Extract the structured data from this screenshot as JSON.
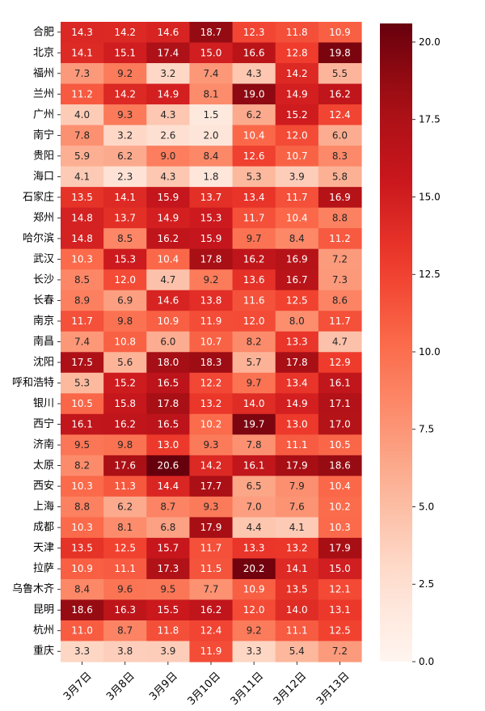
{
  "chart_data": {
    "type": "heatmap",
    "colormap": "Reds",
    "color_range": [
      0,
      20.6
    ],
    "colorbar_ticks": [
      "0.0",
      "2.5",
      "5.0",
      "7.5",
      "10.0",
      "12.5",
      "15.0",
      "17.5",
      "20.0"
    ],
    "colorbar_tick_values": [
      0,
      2.5,
      5,
      7.5,
      10,
      12.5,
      15,
      17.5,
      20
    ],
    "x_categories": [
      "3月7日",
      "3月8日",
      "3月9日",
      "3月10日",
      "3月11日",
      "3月12日",
      "3月13日"
    ],
    "y_categories": [
      "合肥",
      "北京",
      "福州",
      "兰州",
      "广州",
      "南宁",
      "贵阳",
      "海口",
      "石家庄",
      "郑州",
      "哈尔滨",
      "武汉",
      "长沙",
      "长春",
      "南京",
      "南昌",
      "沈阳",
      "呼和浩特",
      "银川",
      "西宁",
      "济南",
      "太原",
      "西安",
      "上海",
      "成都",
      "天津",
      "拉萨",
      "乌鲁木齐",
      "昆明",
      "杭州",
      "重庆"
    ],
    "values": [
      [
        14.3,
        14.2,
        14.6,
        18.7,
        12.3,
        11.8,
        10.9
      ],
      [
        14.1,
        15.1,
        17.4,
        15.0,
        16.6,
        12.8,
        19.8
      ],
      [
        7.3,
        9.2,
        3.2,
        7.4,
        4.3,
        14.2,
        5.5
      ],
      [
        11.2,
        14.2,
        14.9,
        8.1,
        19.0,
        14.9,
        16.2
      ],
      [
        4.0,
        9.3,
        4.3,
        1.5,
        6.2,
        15.2,
        12.4
      ],
      [
        7.8,
        3.2,
        2.6,
        2.0,
        10.4,
        12.0,
        6.0
      ],
      [
        5.9,
        6.2,
        9.0,
        8.4,
        12.6,
        10.7,
        8.3
      ],
      [
        4.1,
        2.3,
        4.3,
        1.8,
        5.3,
        3.9,
        5.8
      ],
      [
        13.5,
        14.1,
        15.9,
        13.7,
        13.4,
        11.7,
        16.9
      ],
      [
        14.8,
        13.7,
        14.9,
        15.3,
        11.7,
        10.4,
        8.8
      ],
      [
        14.8,
        8.5,
        16.2,
        15.9,
        9.7,
        8.4,
        11.2
      ],
      [
        10.3,
        15.3,
        10.4,
        17.8,
        16.2,
        16.9,
        7.2
      ],
      [
        8.5,
        12.0,
        4.7,
        9.2,
        13.6,
        16.7,
        7.3
      ],
      [
        8.9,
        6.9,
        14.6,
        13.8,
        11.6,
        12.5,
        8.6
      ],
      [
        11.7,
        9.8,
        10.9,
        11.9,
        12.0,
        8.0,
        11.7
      ],
      [
        7.4,
        10.8,
        6.0,
        10.7,
        8.2,
        13.3,
        4.7
      ],
      [
        17.5,
        5.6,
        18.0,
        18.3,
        5.7,
        17.8,
        12.9
      ],
      [
        5.3,
        15.2,
        16.5,
        12.2,
        9.7,
        13.4,
        16.1
      ],
      [
        10.5,
        15.8,
        17.8,
        13.2,
        14.0,
        14.9,
        17.1
      ],
      [
        16.1,
        16.2,
        16.5,
        10.2,
        19.7,
        13.0,
        17.0
      ],
      [
        9.5,
        9.8,
        13.0,
        9.3,
        7.8,
        11.1,
        10.5
      ],
      [
        8.2,
        17.6,
        20.6,
        14.2,
        16.1,
        17.9,
        18.6
      ],
      [
        10.3,
        11.3,
        14.4,
        17.7,
        6.5,
        7.9,
        10.4
      ],
      [
        8.8,
        6.2,
        8.7,
        9.3,
        7.0,
        7.6,
        10.2
      ],
      [
        10.3,
        8.1,
        6.8,
        17.9,
        4.4,
        4.1,
        10.3
      ],
      [
        13.5,
        12.5,
        15.7,
        11.7,
        13.3,
        13.2,
        17.9
      ],
      [
        10.9,
        11.1,
        17.3,
        11.5,
        20.2,
        14.1,
        15.0
      ],
      [
        8.4,
        9.6,
        9.5,
        7.7,
        10.9,
        13.5,
        12.1
      ],
      [
        18.6,
        16.3,
        15.5,
        16.2,
        12.0,
        14.0,
        13.1
      ],
      [
        11.0,
        8.7,
        11.8,
        12.4,
        9.2,
        11.1,
        12.5
      ],
      [
        3.3,
        3.8,
        3.9,
        11.9,
        3.3,
        5.4,
        7.2
      ]
    ]
  }
}
